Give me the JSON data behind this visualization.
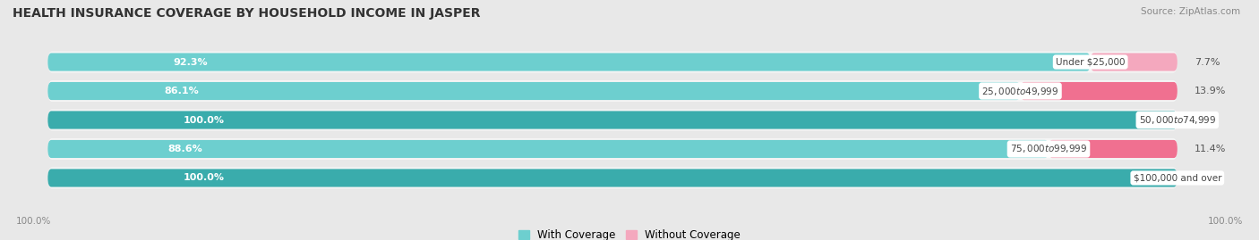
{
  "title": "HEALTH INSURANCE COVERAGE BY HOUSEHOLD INCOME IN JASPER",
  "source": "Source: ZipAtlas.com",
  "categories": [
    "Under $25,000",
    "$25,000 to $49,999",
    "$50,000 to $74,999",
    "$75,000 to $99,999",
    "$100,000 and over"
  ],
  "with_coverage": [
    92.3,
    86.1,
    100.0,
    88.6,
    100.0
  ],
  "without_coverage": [
    7.7,
    13.9,
    0.0,
    11.4,
    0.0
  ],
  "color_with": "#4DBDBD",
  "color_with_alt": "#5BC8C8",
  "color_without": "#F07090",
  "color_without_light": "#F4A8BE",
  "bg_color": "#e8e8e8",
  "bar_bg": "#f5f5f5",
  "bar_height": 0.62,
  "legend_with": "With Coverage",
  "legend_without": "Without Coverage",
  "x_tick_label": "100.0%"
}
